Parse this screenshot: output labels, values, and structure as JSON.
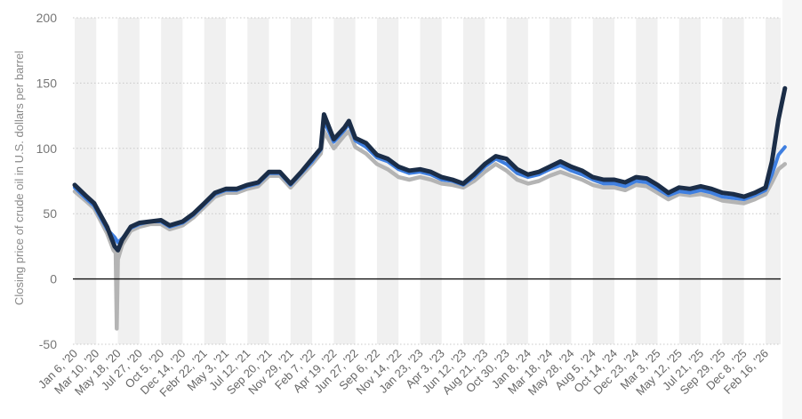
{
  "chart_data": {
    "type": "line",
    "title": "",
    "xlabel": "",
    "ylabel": "Closing price of crude oil in U.S. dollars per barrel",
    "ylim": [
      -50,
      200
    ],
    "yticks": [
      200,
      150,
      100,
      50,
      0,
      -50
    ],
    "grid": true,
    "legend": "none",
    "x_tick_labels": [
      "Jan 6, '20",
      "Mar 10, '20",
      "May 18, '20",
      "Jul 27, '20",
      "Oct 5, '20",
      "Dec 14, '20",
      "Febr 22, '21",
      "May 3, '21",
      "Jul 12, '21",
      "Sep 20, '21",
      "Nov 29, '21",
      "Feb 7, '22",
      "Apr 19, '22",
      "Jun 27, '22",
      "Sep 6, '22",
      "Nov 14, '22",
      "Jan 23, '23",
      "Apr 3, '23",
      "Jun 12, '23",
      "Aug 21, '23",
      "Oct 30, '23",
      "Jan 8, '24",
      "Mar 18, '24",
      "May 28, '24",
      "Aug 5, '24",
      "Oct 14, '24",
      "Dec 23, '24",
      "Mar 3, '25",
      "May 12, '25",
      "Jul 21, '25",
      "Sep 29, '25",
      "Dec 8, '25",
      "Feb 16, '26"
    ],
    "x": [
      0,
      1,
      2,
      3,
      4,
      5,
      6,
      7,
      8,
      9,
      10,
      11,
      12,
      13,
      14,
      15,
      16,
      17,
      18,
      19,
      20,
      21,
      22,
      23,
      24,
      25,
      26,
      27,
      28,
      29,
      30,
      31,
      32
    ],
    "x_end": 32.9,
    "series": [
      {
        "color": "#1b2d47",
        "values": [
          [
            0,
            72
          ],
          [
            0.5,
            64
          ],
          [
            0.9,
            58
          ],
          [
            1.5,
            40
          ],
          [
            1.85,
            25
          ],
          [
            2.0,
            22
          ],
          [
            2.2,
            30
          ],
          [
            2.6,
            40
          ],
          [
            3,
            43
          ],
          [
            3.5,
            44
          ],
          [
            4,
            45
          ],
          [
            4.4,
            41
          ],
          [
            5,
            44
          ],
          [
            5.5,
            50
          ],
          [
            6,
            58
          ],
          [
            6.5,
            66
          ],
          [
            7,
            69
          ],
          [
            7.5,
            69
          ],
          [
            8,
            72
          ],
          [
            8.5,
            74
          ],
          [
            9,
            82
          ],
          [
            9.5,
            82
          ],
          [
            10,
            73
          ],
          [
            10.5,
            82
          ],
          [
            11,
            92
          ],
          [
            11.4,
            100
          ],
          [
            11.55,
            126
          ],
          [
            12,
            107
          ],
          [
            12.5,
            116
          ],
          [
            12.7,
            121
          ],
          [
            13,
            108
          ],
          [
            13.5,
            104
          ],
          [
            14,
            95
          ],
          [
            14.5,
            92
          ],
          [
            15,
            86
          ],
          [
            15.5,
            83
          ],
          [
            16,
            84
          ],
          [
            16.5,
            82
          ],
          [
            17,
            78
          ],
          [
            17.5,
            76
          ],
          [
            18,
            73
          ],
          [
            18.5,
            80
          ],
          [
            19,
            88
          ],
          [
            19.5,
            94
          ],
          [
            20,
            92
          ],
          [
            20.5,
            84
          ],
          [
            21,
            80
          ],
          [
            21.5,
            82
          ],
          [
            22,
            86
          ],
          [
            22.5,
            90
          ],
          [
            23,
            86
          ],
          [
            23.5,
            83
          ],
          [
            24,
            78
          ],
          [
            24.5,
            76
          ],
          [
            25,
            76
          ],
          [
            25.5,
            74
          ],
          [
            26,
            78
          ],
          [
            26.5,
            77
          ],
          [
            27,
            72
          ],
          [
            27.5,
            66
          ],
          [
            28,
            70
          ],
          [
            28.5,
            69
          ],
          [
            29,
            71
          ],
          [
            29.5,
            69
          ],
          [
            30,
            66
          ],
          [
            30.5,
            65
          ],
          [
            31,
            63
          ],
          [
            31.5,
            66
          ],
          [
            32,
            70
          ],
          [
            32.3,
            90
          ],
          [
            32.6,
            122
          ],
          [
            32.9,
            146
          ]
        ]
      },
      {
        "color": "#3f7fe0",
        "values": [
          [
            0,
            70
          ],
          [
            0.5,
            62
          ],
          [
            0.9,
            56
          ],
          [
            1.5,
            38
          ],
          [
            1.85,
            32
          ],
          [
            2.0,
            28
          ],
          [
            2.2,
            31
          ],
          [
            2.6,
            39
          ],
          [
            3,
            42
          ],
          [
            3.5,
            44
          ],
          [
            4,
            44
          ],
          [
            4.4,
            40
          ],
          [
            5,
            43
          ],
          [
            5.5,
            49
          ],
          [
            6,
            57
          ],
          [
            6.5,
            65
          ],
          [
            7,
            68
          ],
          [
            7.5,
            68
          ],
          [
            8,
            71
          ],
          [
            8.5,
            73
          ],
          [
            9,
            81
          ],
          [
            9.5,
            81
          ],
          [
            10,
            72
          ],
          [
            10.5,
            81
          ],
          [
            11,
            90
          ],
          [
            11.4,
            99
          ],
          [
            11.55,
            121
          ],
          [
            12,
            105
          ],
          [
            12.5,
            114
          ],
          [
            12.7,
            119
          ],
          [
            13,
            106
          ],
          [
            13.5,
            101
          ],
          [
            14,
            93
          ],
          [
            14.5,
            90
          ],
          [
            15,
            84
          ],
          [
            15.5,
            81
          ],
          [
            16,
            82
          ],
          [
            16.5,
            80
          ],
          [
            17,
            76
          ],
          [
            17.5,
            75
          ],
          [
            18,
            72
          ],
          [
            18.5,
            78
          ],
          [
            19,
            86
          ],
          [
            19.5,
            92
          ],
          [
            20,
            88
          ],
          [
            20.5,
            81
          ],
          [
            21,
            78
          ],
          [
            21.5,
            80
          ],
          [
            22,
            84
          ],
          [
            22.5,
            87
          ],
          [
            23,
            83
          ],
          [
            23.5,
            80
          ],
          [
            24,
            76
          ],
          [
            24.5,
            73
          ],
          [
            25,
            73
          ],
          [
            25.5,
            71
          ],
          [
            26,
            75
          ],
          [
            26.5,
            74
          ],
          [
            27,
            69
          ],
          [
            27.5,
            64
          ],
          [
            28,
            67
          ],
          [
            28.5,
            66
          ],
          [
            29,
            68
          ],
          [
            29.5,
            66
          ],
          [
            30,
            63
          ],
          [
            30.5,
            62
          ],
          [
            31,
            61
          ],
          [
            31.5,
            64
          ],
          [
            32,
            68
          ],
          [
            32.3,
            80
          ],
          [
            32.6,
            95
          ],
          [
            32.9,
            101
          ]
        ]
      },
      {
        "color": "#b4b4b4",
        "values": [
          [
            0,
            67
          ],
          [
            0.5,
            60
          ],
          [
            0.9,
            54
          ],
          [
            1.5,
            35
          ],
          [
            1.8,
            22
          ],
          [
            1.9,
            20
          ],
          [
            1.95,
            -38
          ],
          [
            2.0,
            15
          ],
          [
            2.2,
            26
          ],
          [
            2.6,
            37
          ],
          [
            3,
            40
          ],
          [
            3.5,
            42
          ],
          [
            4,
            42
          ],
          [
            4.4,
            38
          ],
          [
            5,
            41
          ],
          [
            5.5,
            47
          ],
          [
            6,
            55
          ],
          [
            6.5,
            63
          ],
          [
            7,
            66
          ],
          [
            7.5,
            66
          ],
          [
            8,
            69
          ],
          [
            8.5,
            71
          ],
          [
            9,
            79
          ],
          [
            9.5,
            79
          ],
          [
            10,
            70
          ],
          [
            10.5,
            79
          ],
          [
            11,
            88
          ],
          [
            11.4,
            96
          ],
          [
            11.55,
            113
          ],
          [
            12,
            100
          ],
          [
            12.5,
            110
          ],
          [
            12.7,
            113
          ],
          [
            13,
            101
          ],
          [
            13.5,
            96
          ],
          [
            14,
            88
          ],
          [
            14.5,
            84
          ],
          [
            15,
            78
          ],
          [
            15.5,
            76
          ],
          [
            16,
            78
          ],
          [
            16.5,
            76
          ],
          [
            17,
            73
          ],
          [
            17.5,
            72
          ],
          [
            18,
            70
          ],
          [
            18.5,
            75
          ],
          [
            19,
            82
          ],
          [
            19.5,
            88
          ],
          [
            20,
            83
          ],
          [
            20.5,
            76
          ],
          [
            21,
            73
          ],
          [
            21.5,
            75
          ],
          [
            22,
            79
          ],
          [
            22.5,
            82
          ],
          [
            23,
            79
          ],
          [
            23.5,
            76
          ],
          [
            24,
            72
          ],
          [
            24.5,
            70
          ],
          [
            25,
            70
          ],
          [
            25.5,
            68
          ],
          [
            26,
            72
          ],
          [
            26.5,
            71
          ],
          [
            27,
            66
          ],
          [
            27.5,
            61
          ],
          [
            28,
            65
          ],
          [
            28.5,
            64
          ],
          [
            29,
            65
          ],
          [
            29.5,
            63
          ],
          [
            30,
            60
          ],
          [
            30.5,
            59
          ],
          [
            31,
            58
          ],
          [
            31.5,
            61
          ],
          [
            32,
            65
          ],
          [
            32.3,
            74
          ],
          [
            32.6,
            84
          ],
          [
            32.9,
            88
          ]
        ]
      }
    ]
  }
}
